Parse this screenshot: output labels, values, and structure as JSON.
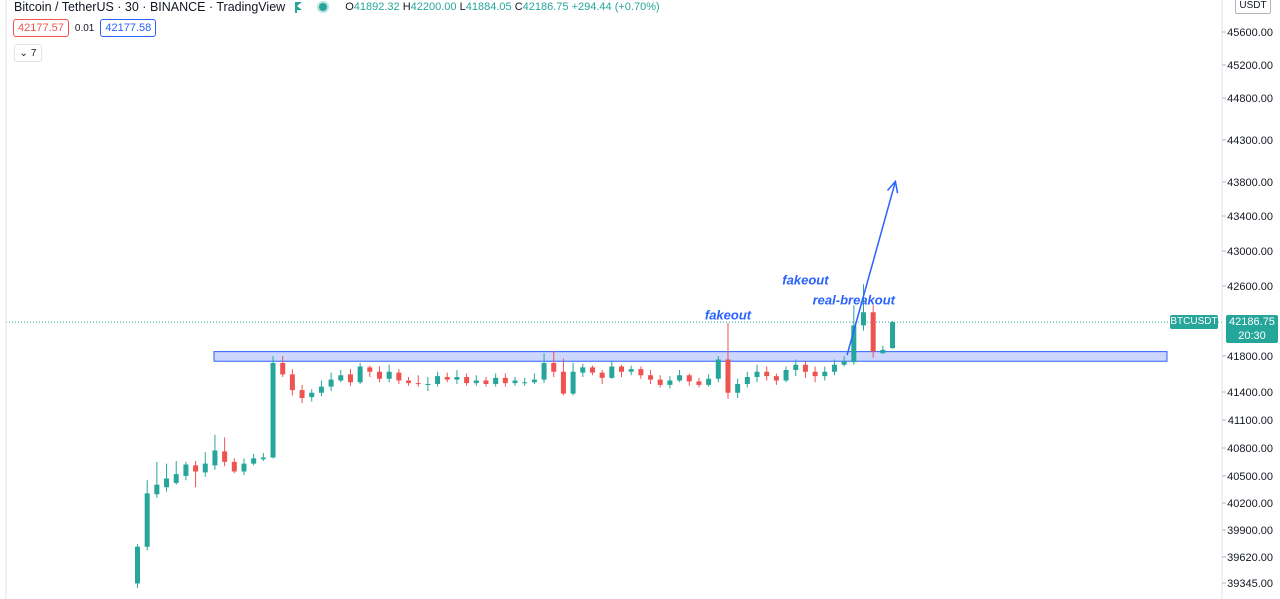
{
  "legend": {
    "symbol": "Bitcoin / TetherUS · 30 · BINANCE · TradingView",
    "open_label": "O",
    "open": "41892.32",
    "high_label": "H",
    "high": "42200.00",
    "low_label": "L",
    "low": "41884.05",
    "close_label": "C",
    "close": "42186.75",
    "change": "+294.44 (+0.70%)"
  },
  "trade": {
    "sell": "42177.57",
    "spread": "0.01",
    "buy": "42177.58"
  },
  "indicators_toggle": {
    "label": "7"
  },
  "currency_button": "USDT",
  "last_price": {
    "symbol": "BTCUSDT",
    "price": "42186.75",
    "countdown": "20:30"
  },
  "colors": {
    "up": "#26a69a",
    "down": "#ef5350",
    "accent": "#2962ff",
    "zone": "#bcc8fb"
  },
  "chart_data": {
    "type": "candlestick",
    "symbol": "BTCUSDT",
    "interval": "30",
    "y_ticks": [
      "45600.00",
      "45200.00",
      "44800.00",
      "44300.00",
      "43800.00",
      "43400.00",
      "43000.00",
      "42600.00",
      "41800.00",
      "41400.00",
      "41100.00",
      "40800.00",
      "40500.00",
      "40200.00",
      "39900.00",
      "39620.00",
      "39345.00"
    ],
    "resistance_zone": {
      "low": 41740,
      "high": 41850
    },
    "annotations": [
      {
        "text": "fakeout",
        "x_index": 61,
        "price": 42220
      },
      {
        "text": "fakeout",
        "x_index": 69,
        "price": 42620
      },
      {
        "text": "real-breakout",
        "x_index": 74,
        "price": 42390
      }
    ],
    "arrow": {
      "from": {
        "x_index": 73.3,
        "price": 41810
      },
      "to": {
        "x_index": 78.3,
        "price": 43795
      }
    },
    "candles": [
      [
        39200,
        39620,
        39150,
        39650
      ],
      [
        39620,
        40230,
        39580,
        40380
      ],
      [
        40220,
        40330,
        40180,
        40590
      ],
      [
        40300,
        40400,
        40250,
        40570
      ],
      [
        40350,
        40450,
        40330,
        40600
      ],
      [
        40430,
        40560,
        40380,
        40590
      ],
      [
        40550,
        40480,
        40300,
        40600
      ],
      [
        40470,
        40570,
        40420,
        40700
      ],
      [
        40550,
        40720,
        40500,
        40900
      ],
      [
        40710,
        40590,
        40540,
        40870
      ],
      [
        40590,
        40480,
        40460,
        40630
      ],
      [
        40480,
        40570,
        40440,
        40630
      ],
      [
        40570,
        40630,
        40550,
        40680
      ],
      [
        40620,
        40640,
        40600,
        40690
      ],
      [
        40640,
        41720,
        40630,
        41800
      ],
      [
        41720,
        41590,
        41560,
        41800
      ],
      [
        41590,
        41410,
        41350,
        41650
      ],
      [
        41410,
        41320,
        41260,
        41470
      ],
      [
        41330,
        41380,
        41280,
        41420
      ],
      [
        41380,
        41450,
        41340,
        41520
      ],
      [
        41450,
        41530,
        41400,
        41610
      ],
      [
        41520,
        41580,
        41500,
        41640
      ],
      [
        41590,
        41500,
        41460,
        41650
      ],
      [
        41500,
        41680,
        41480,
        41720
      ],
      [
        41670,
        41620,
        41560,
        41690
      ],
      [
        41620,
        41540,
        41500,
        41680
      ],
      [
        41540,
        41620,
        41500,
        41700
      ],
      [
        41610,
        41520,
        41480,
        41650
      ],
      [
        41520,
        41490,
        41460,
        41560
      ],
      [
        41490,
        41480,
        41450,
        41580
      ],
      [
        41480,
        41480,
        41400,
        41560
      ],
      [
        41480,
        41570,
        41450,
        41620
      ],
      [
        41560,
        41530,
        41500,
        41610
      ],
      [
        41530,
        41560,
        41480,
        41640
      ],
      [
        41560,
        41490,
        41460,
        41600
      ],
      [
        41490,
        41520,
        41460,
        41580
      ],
      [
        41520,
        41480,
        41450,
        41560
      ],
      [
        41480,
        41550,
        41450,
        41600
      ],
      [
        41550,
        41490,
        41450,
        41600
      ],
      [
        41490,
        41520,
        41460,
        41560
      ],
      [
        41500,
        41500,
        41460,
        41550
      ],
      [
        41500,
        41530,
        41480,
        41600
      ],
      [
        41530,
        41720,
        41490,
        41830
      ],
      [
        41720,
        41620,
        41560,
        41860
      ],
      [
        41620,
        41370,
        41350,
        41770
      ],
      [
        41370,
        41620,
        41350,
        41720
      ],
      [
        41610,
        41670,
        41560,
        41710
      ],
      [
        41670,
        41610,
        41580,
        41690
      ],
      [
        41610,
        41550,
        41480,
        41640
      ],
      [
        41550,
        41680,
        41540,
        41750
      ],
      [
        41680,
        41620,
        41560,
        41700
      ],
      [
        41620,
        41650,
        41580,
        41690
      ],
      [
        41650,
        41580,
        41540,
        41680
      ],
      [
        41580,
        41530,
        41480,
        41640
      ],
      [
        41530,
        41470,
        41440,
        41580
      ],
      [
        41470,
        41520,
        41430,
        41570
      ],
      [
        41520,
        41580,
        41500,
        41640
      ],
      [
        41580,
        41510,
        41460,
        41600
      ],
      [
        41510,
        41470,
        41440,
        41550
      ],
      [
        41470,
        41540,
        41450,
        41590
      ],
      [
        41540,
        41760,
        41500,
        41800
      ],
      [
        41760,
        41380,
        41310,
        42180
      ],
      [
        41380,
        41480,
        41320,
        41540
      ],
      [
        41480,
        41560,
        41440,
        41620
      ],
      [
        41560,
        41620,
        41500,
        41700
      ],
      [
        41620,
        41570,
        41520,
        41680
      ],
      [
        41570,
        41520,
        41470,
        41600
      ],
      [
        41520,
        41640,
        41500,
        41680
      ],
      [
        41640,
        41700,
        41570,
        41760
      ],
      [
        41700,
        41620,
        41550,
        41740
      ],
      [
        41620,
        41570,
        41500,
        41680
      ],
      [
        41570,
        41620,
        41520,
        41680
      ],
      [
        41620,
        41700,
        41580,
        41760
      ],
      [
        41700,
        41740,
        41680,
        41800
      ],
      [
        41730,
        42150,
        41700,
        42380
      ],
      [
        42150,
        42300,
        42090,
        42620
      ],
      [
        42300,
        41850,
        41780,
        42380
      ],
      [
        41830,
        41870,
        41830,
        41920
      ],
      [
        41890,
        42186.75,
        41884.05,
        42200
      ]
    ]
  }
}
